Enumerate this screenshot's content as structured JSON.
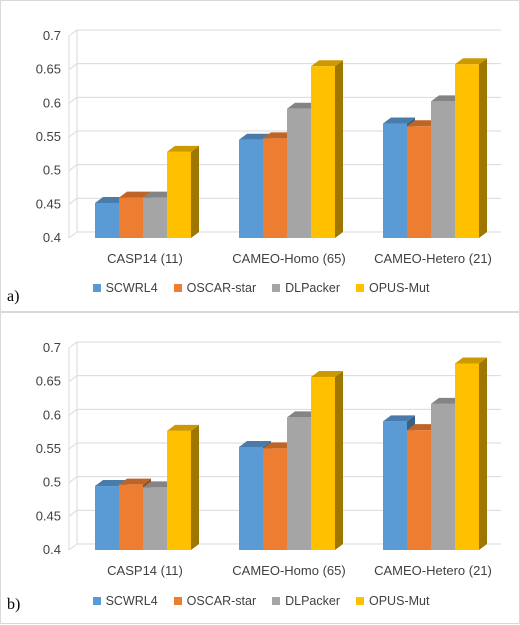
{
  "colors": {
    "SCWRL4": "#5b9bd5",
    "OSCAR-star": "#ed7d31",
    "DLPacker": "#a5a5a5",
    "OPUS-Mut": "#ffc000"
  },
  "chart_data": [
    {
      "type": "bar",
      "panel_label": "a)",
      "categories": [
        "CASP14 (11)",
        "CAMEO-Homo (65)",
        "CAMEO-Hetero (21)"
      ],
      "series": [
        {
          "name": "SCWRL4",
          "values": [
            0.452,
            0.546,
            0.57
          ]
        },
        {
          "name": "OSCAR-star",
          "values": [
            0.46,
            0.548,
            0.566
          ]
        },
        {
          "name": "DLPacker",
          "values": [
            0.46,
            0.592,
            0.603
          ]
        },
        {
          "name": "OPUS-Mut",
          "values": [
            0.528,
            0.655,
            0.658
          ]
        }
      ],
      "ylim": [
        0.4,
        0.7
      ],
      "yticks": [
        "0.4",
        "0.45",
        "0.5",
        "0.55",
        "0.6",
        "0.65",
        "0.7"
      ],
      "grid": true,
      "legend": "bottom"
    },
    {
      "type": "bar",
      "panel_label": "b)",
      "categories": [
        "CASP14 (11)",
        "CAMEO-Homo (65)",
        "CAMEO-Hetero (21)"
      ],
      "series": [
        {
          "name": "SCWRL4",
          "values": [
            0.495,
            0.553,
            0.591
          ]
        },
        {
          "name": "OSCAR-star",
          "values": [
            0.497,
            0.551,
            0.578
          ]
        },
        {
          "name": "DLPacker",
          "values": [
            0.493,
            0.597,
            0.617
          ]
        },
        {
          "name": "OPUS-Mut",
          "values": [
            0.577,
            0.657,
            0.677
          ]
        }
      ],
      "ylim": [
        0.4,
        0.7
      ],
      "yticks": [
        "0.4",
        "0.45",
        "0.5",
        "0.55",
        "0.6",
        "0.65",
        "0.7"
      ],
      "grid": true,
      "legend": "bottom"
    }
  ]
}
